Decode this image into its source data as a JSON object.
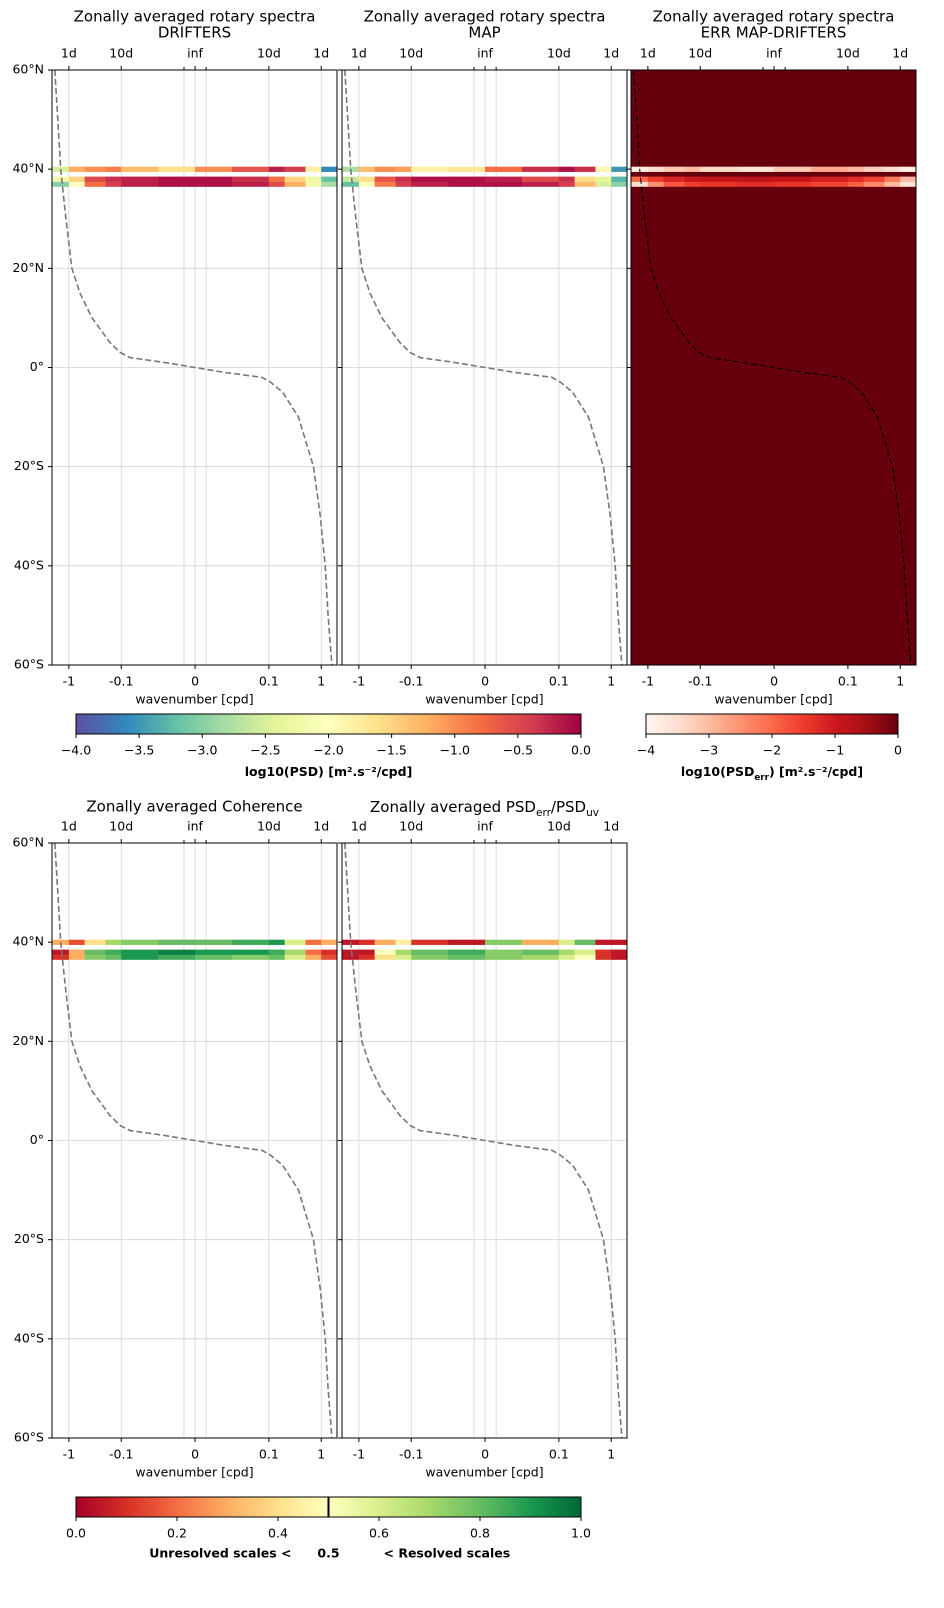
{
  "chart_data": [
    {
      "type": "heatmap",
      "title": "Zonally averaged rotary spectra",
      "subtitle": "DRIFTERS",
      "xlabel": "wavenumber [cpd]",
      "xscale": "symlog",
      "linthresh": 0.1,
      "xlim": [
        -2.1,
        2.0
      ],
      "ylim": [
        -60,
        60
      ],
      "xticks": [
        -1,
        -0.1,
        0,
        0.1,
        1
      ],
      "x2ticks": [
        {
          "value": -1,
          "label": "1d"
        },
        {
          "value": -0.1,
          "label": "10d"
        },
        {
          "value": 0,
          "label": "inf"
        },
        {
          "value": 0.1,
          "label": "10d"
        },
        {
          "value": 1,
          "label": "1d"
        }
      ],
      "x2minorticks": [
        -0.015,
        0.015
      ],
      "yticks": [
        {
          "value": 60,
          "label": "60°N"
        },
        {
          "value": 40,
          "label": "40°N"
        },
        {
          "value": 20,
          "label": "20°N"
        },
        {
          "value": 0,
          "label": "0°"
        },
        {
          "value": -20,
          "label": "20°S"
        },
        {
          "value": -40,
          "label": "40°S"
        },
        {
          "value": -60,
          "label": "60°S"
        }
      ],
      "yticklabels": true,
      "grid": true,
      "cmap": "Spectral_r",
      "clim": [
        -4,
        0
      ],
      "x_edges": [
        -2.1,
        -1,
        -0.5,
        -0.2,
        -0.1,
        -0.05,
        0,
        0.05,
        0.1,
        0.2,
        0.5,
        1,
        2.0
      ],
      "y_edges": [
        36.5,
        37.5,
        38.5,
        39.5,
        40.5
      ],
      "z": [
        [
          -3.0,
          -2.0,
          -0.8,
          -0.4,
          -0.2,
          -0.1,
          -0.1,
          -0.2,
          -0.5,
          -1.2,
          -2.2,
          -2.8
        ],
        [
          -2.2,
          -1.5,
          -0.5,
          -0.3,
          -0.2,
          -0.1,
          -0.1,
          -0.3,
          -0.8,
          -1.5,
          -2.3,
          -3.2
        ],
        [
          null,
          null,
          null,
          null,
          null,
          null,
          null,
          null,
          null,
          null,
          null,
          null
        ],
        [
          -2.5,
          -1.2,
          -1.0,
          -0.9,
          -1.3,
          -1.6,
          -1.0,
          -0.6,
          -0.2,
          -0.4,
          -1.8,
          -3.6
        ]
      ],
      "curve": {
        "color": "#777777",
        "x": [
          -1.86,
          -1.63,
          -1.43,
          -1.14,
          -0.875,
          -0.614,
          -0.361,
          -0.163,
          -0.104,
          -0.088,
          -0.041,
          0,
          0.041,
          0.091,
          0.109,
          0.184,
          0.368,
          0.71,
          0.96,
          1.19,
          1.35,
          1.6
        ],
        "y": [
          60,
          50,
          40,
          30,
          20,
          15,
          10,
          5,
          3,
          2,
          1,
          0,
          -1,
          -2,
          -3,
          -5,
          -10,
          -20,
          -30,
          -40,
          -50,
          -60
        ]
      },
      "colorbar": {
        "ticks": [
          {
            "value": -4,
            "label": "−4.0"
          },
          {
            "value": -3.5,
            "label": "−3.5"
          },
          {
            "value": -3,
            "label": "−3.0"
          },
          {
            "value": -2.5,
            "label": "−2.5"
          },
          {
            "value": -2,
            "label": "−2.0"
          },
          {
            "value": -1.5,
            "label": "−1.5"
          },
          {
            "value": -1,
            "label": "−1.0"
          },
          {
            "value": -0.5,
            "label": "−0.5"
          },
          {
            "value": 0,
            "label": "0.0"
          }
        ],
        "label": [
          {
            "text": "log10(PSD) [m².s⁻²/cpd]"
          }
        ]
      }
    },
    {
      "type": "heatmap",
      "title": "Zonally averaged rotary spectra",
      "subtitle": "MAP",
      "xlabel": "wavenumber [cpd]",
      "xscale": "symlog",
      "linthresh": 0.1,
      "xlim": [
        -2.1,
        2.0
      ],
      "ylim": [
        -60,
        60
      ],
      "xticks": [
        -1,
        -0.1,
        0,
        0.1,
        1
      ],
      "x2ticks": [
        {
          "value": -1,
          "label": "1d"
        },
        {
          "value": -0.1,
          "label": "10d"
        },
        {
          "value": 0,
          "label": "inf"
        },
        {
          "value": 0.1,
          "label": "10d"
        },
        {
          "value": 1,
          "label": "1d"
        }
      ],
      "x2minorticks": [
        -0.015,
        0.015
      ],
      "yticks": [
        60,
        40,
        20,
        0,
        -20,
        -40,
        -60
      ],
      "yticklabels": false,
      "grid": true,
      "cmap": "Spectral_r",
      "clim": [
        -4,
        0
      ],
      "x_edges": [
        -2.1,
        -1,
        -0.5,
        -0.2,
        -0.1,
        -0.05,
        0,
        0.05,
        0.1,
        0.2,
        0.5,
        1,
        2.0
      ],
      "y_edges": [
        36.5,
        37.5,
        38.5,
        39.5,
        40.5
      ],
      "z": [
        [
          -3.2,
          -2.1,
          -0.9,
          -0.4,
          -0.2,
          -0.1,
          -0.1,
          -0.2,
          -0.4,
          -1.3,
          -2.5,
          -3.0
        ],
        [
          -2.6,
          -1.6,
          -0.6,
          -0.3,
          -0.1,
          -0.1,
          -0.2,
          -0.5,
          -0.3,
          -1.6,
          -2.4,
          -3.3
        ],
        [
          null,
          null,
          null,
          null,
          null,
          null,
          null,
          null,
          null,
          null,
          null,
          null
        ],
        [
          -2.8,
          -1.3,
          -1.0,
          -1.1,
          -1.8,
          -1.7,
          -0.8,
          -0.3,
          -0.1,
          -0.3,
          -1.9,
          -3.5
        ]
      ],
      "curve": {
        "color": "#777777",
        "x": [
          -1.86,
          -1.63,
          -1.43,
          -1.14,
          -0.875,
          -0.614,
          -0.361,
          -0.163,
          -0.104,
          -0.088,
          -0.041,
          0,
          0.041,
          0.091,
          0.109,
          0.184,
          0.368,
          0.71,
          0.96,
          1.19,
          1.35,
          1.6
        ],
        "y": [
          60,
          50,
          40,
          30,
          20,
          15,
          10,
          5,
          3,
          2,
          1,
          0,
          -1,
          -2,
          -3,
          -5,
          -10,
          -20,
          -30,
          -40,
          -50,
          -60
        ]
      }
    },
    {
      "type": "heatmap",
      "title": "Zonally averaged rotary spectra",
      "subtitle": "ERR MAP-DRIFTERS",
      "xlabel": "wavenumber [cpd]",
      "xscale": "symlog",
      "linthresh": 0.1,
      "xlim": [
        -2.1,
        2.0
      ],
      "ylim": [
        -60,
        60
      ],
      "xticks": [
        -1,
        -0.1,
        0,
        0.1,
        1
      ],
      "x2ticks": [
        {
          "value": -1,
          "label": "1d"
        },
        {
          "value": -0.1,
          "label": "10d"
        },
        {
          "value": 0,
          "label": "inf"
        },
        {
          "value": 0.1,
          "label": "10d"
        },
        {
          "value": 1,
          "label": "1d"
        }
      ],
      "x2minorticks": [
        -0.015,
        0.015
      ],
      "yticks": [
        60,
        40,
        20,
        0,
        -20,
        -40,
        -60
      ],
      "yticklabels": false,
      "grid": true,
      "cmap": "Reds",
      "clim": [
        -4,
        0
      ],
      "facecolor": "#67000d",
      "x_edges": [
        -2.1,
        -1,
        -0.5,
        -0.2,
        -0.1,
        -0.05,
        0,
        0.05,
        0.1,
        0.2,
        0.5,
        1,
        2.0
      ],
      "y_edges": [
        36.5,
        37.5,
        38.5,
        39.5,
        40.5
      ],
      "z": [
        [
          -3.5,
          -2.5,
          -1.8,
          -1.5,
          -1.4,
          -1.3,
          -1.4,
          -1.6,
          -1.9,
          -2.4,
          -3.0,
          -3.6
        ],
        [
          -2.0,
          -1.5,
          -1.2,
          -1.0,
          -0.9,
          -0.8,
          -0.9,
          -1.1,
          -1.3,
          -1.6,
          -2.2,
          -3.0
        ],
        [
          null,
          null,
          null,
          null,
          null,
          null,
          null,
          null,
          null,
          null,
          null,
          null
        ],
        [
          -3.8,
          -3.5,
          -3.2,
          -3.0,
          -3.4,
          -3.6,
          -3.2,
          -2.8,
          -3.0,
          -3.3,
          -3.5,
          -3.9
        ]
      ],
      "curve": {
        "color": "#000000",
        "x": [
          -1.86,
          -1.63,
          -1.43,
          -1.14,
          -0.875,
          -0.614,
          -0.361,
          -0.163,
          -0.104,
          -0.088,
          -0.041,
          0,
          0.041,
          0.091,
          0.109,
          0.184,
          0.368,
          0.71,
          0.96,
          1.19,
          1.35,
          1.6
        ],
        "y": [
          60,
          50,
          40,
          30,
          20,
          15,
          10,
          5,
          3,
          2,
          1,
          0,
          -1,
          -2,
          -3,
          -5,
          -10,
          -20,
          -30,
          -40,
          -50,
          -60
        ]
      },
      "colorbar": {
        "ticks": [
          {
            "value": -4,
            "label": "−4"
          },
          {
            "value": -3,
            "label": "−3"
          },
          {
            "value": -2,
            "label": "−2"
          },
          {
            "value": -1,
            "label": "−1"
          },
          0
        ],
        "label": [
          {
            "text": "log10(PSD"
          },
          {
            "text": "err",
            "sub": true
          },
          {
            "text": ") [m².s⁻²/cpd]"
          }
        ]
      }
    },
    {
      "type": "heatmap",
      "title": "Zonally averaged Coherence",
      "xlabel": "wavenumber [cpd]",
      "xscale": "symlog",
      "linthresh": 0.1,
      "xlim": [
        -2.1,
        2.0
      ],
      "ylim": [
        -60,
        60
      ],
      "xticks": [
        -1,
        -0.1,
        0,
        0.1,
        1
      ],
      "x2ticks": [
        {
          "value": -1,
          "label": "1d"
        },
        {
          "value": -0.1,
          "label": "10d"
        },
        {
          "value": 0,
          "label": "inf"
        },
        {
          "value": 0.1,
          "label": "10d"
        },
        {
          "value": 1,
          "label": "1d"
        }
      ],
      "x2minorticks": [
        -0.015,
        0.015
      ],
      "yticks": [
        {
          "value": 60,
          "label": "60°N"
        },
        {
          "value": 40,
          "label": "40°N"
        },
        {
          "value": 20,
          "label": "20°N"
        },
        {
          "value": 0,
          "label": "0°"
        },
        {
          "value": -20,
          "label": "20°S"
        },
        {
          "value": -40,
          "label": "40°S"
        },
        {
          "value": -60,
          "label": "60°S"
        }
      ],
      "yticklabels": true,
      "grid": true,
      "cmap": "RdYlGn",
      "clim": [
        0,
        1
      ],
      "x_edges": [
        -2.1,
        -1,
        -0.5,
        -0.2,
        -0.1,
        -0.05,
        0,
        0.05,
        0.1,
        0.2,
        0.5,
        1,
        2.0
      ],
      "y_edges": [
        36.5,
        37.5,
        38.5,
        39.5,
        40.5
      ],
      "z": [
        [
          0.1,
          0.3,
          0.75,
          0.8,
          0.9,
          0.85,
          0.8,
          0.75,
          0.8,
          0.6,
          0.3,
          0.15
        ],
        [
          0.05,
          0.3,
          0.8,
          0.85,
          0.9,
          0.95,
          0.9,
          0.9,
          0.85,
          0.7,
          0.2,
          0.1
        ],
        [
          null,
          null,
          null,
          null,
          null,
          null,
          null,
          null,
          null,
          null,
          null,
          null
        ],
        [
          0.3,
          0.15,
          0.4,
          0.7,
          0.75,
          0.8,
          0.8,
          0.85,
          0.9,
          0.6,
          0.2,
          0.3
        ]
      ],
      "curve": {
        "color": "#777777",
        "x": [
          -1.86,
          -1.63,
          -1.43,
          -1.14,
          -0.875,
          -0.614,
          -0.361,
          -0.163,
          -0.104,
          -0.088,
          -0.041,
          0,
          0.041,
          0.091,
          0.109,
          0.184,
          0.368,
          0.71,
          0.96,
          1.19,
          1.35,
          1.6
        ],
        "y": [
          60,
          50,
          40,
          30,
          20,
          15,
          10,
          5,
          3,
          2,
          1,
          0,
          -1,
          -2,
          -3,
          -5,
          -10,
          -20,
          -30,
          -40,
          -50,
          -60
        ]
      },
      "colorbar": {
        "ticks": [
          {
            "value": 0,
            "label": "0.0"
          },
          0.2,
          0.4,
          0.6,
          0.8,
          {
            "value": 1,
            "label": "1.0"
          }
        ],
        "threshold": 0.5,
        "label_left": "Unresolved scales <",
        "label_right": "< Resolved scales"
      }
    },
    {
      "type": "heatmap",
      "title": [
        {
          "text": "Zonally averaged PSD"
        },
        {
          "text": "err",
          "sub": true
        },
        {
          "text": "/PSD"
        },
        {
          "text": "uv",
          "sub": true
        }
      ],
      "xlabel": "wavenumber [cpd]",
      "xscale": "symlog",
      "linthresh": 0.1,
      "xlim": [
        -2.1,
        2.0
      ],
      "ylim": [
        -60,
        60
      ],
      "xticks": [
        -1,
        -0.1,
        0,
        0.1,
        1
      ],
      "x2ticks": [
        {
          "value": -1,
          "label": "1d"
        },
        {
          "value": -0.1,
          "label": "10d"
        },
        {
          "value": 0,
          "label": "inf"
        },
        {
          "value": 0.1,
          "label": "10d"
        },
        {
          "value": 1,
          "label": "1d"
        }
      ],
      "x2minorticks": [
        -0.015,
        0.015
      ],
      "yticks": [
        60,
        40,
        20,
        0,
        -20,
        -40,
        -60
      ],
      "yticklabels": false,
      "grid": true,
      "cmap": "RdYlGn",
      "clim": [
        0,
        1
      ],
      "x_edges": [
        -2.1,
        -1,
        -0.5,
        -0.2,
        -0.1,
        -0.05,
        0,
        0.05,
        0.1,
        0.2,
        0.5,
        1,
        2.0
      ],
      "y_edges": [
        36.5,
        37.5,
        38.5,
        39.5,
        40.5
      ],
      "z": [
        [
          0.05,
          0.1,
          0.4,
          0.6,
          0.75,
          0.8,
          0.75,
          0.7,
          0.6,
          0.5,
          0.1,
          0.05
        ],
        [
          0.05,
          0.05,
          0.5,
          0.7,
          0.8,
          0.85,
          0.75,
          0.8,
          0.7,
          0.6,
          0.1,
          0.05
        ],
        [
          null,
          null,
          null,
          null,
          null,
          null,
          null,
          null,
          null,
          null,
          null,
          null
        ],
        [
          0.05,
          0.1,
          0.3,
          0.45,
          0.1,
          0.05,
          0.75,
          0.3,
          0.6,
          0.8,
          0.05,
          0.05
        ]
      ],
      "curve": {
        "color": "#777777",
        "x": [
          -1.86,
          -1.63,
          -1.43,
          -1.14,
          -0.875,
          -0.614,
          -0.361,
          -0.163,
          -0.104,
          -0.088,
          -0.041,
          0,
          0.041,
          0.091,
          0.109,
          0.184,
          0.368,
          0.71,
          0.96,
          1.19,
          1.35,
          1.6
        ],
        "y": [
          60,
          50,
          40,
          30,
          20,
          15,
          10,
          5,
          3,
          2,
          1,
          0,
          -1,
          -2,
          -3,
          -5,
          -10,
          -20,
          -30,
          -40,
          -50,
          -60
        ]
      }
    }
  ]
}
